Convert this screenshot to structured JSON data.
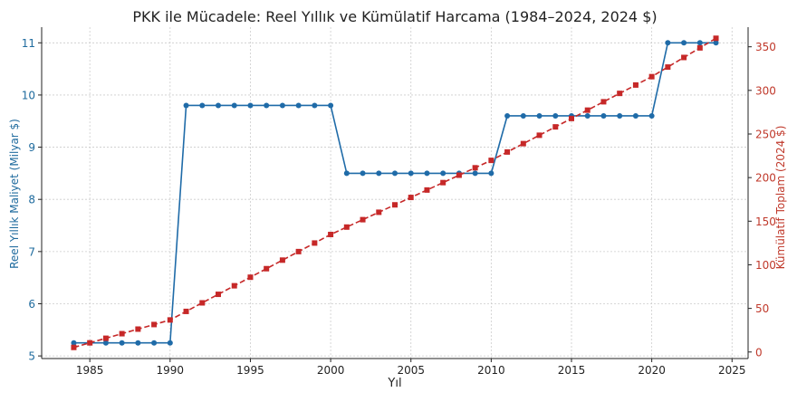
{
  "chart_data": {
    "type": "line",
    "title": "PKK ile Mücadele: Reel Yıllık ve Kümülatif Harcama (1984–2024, 2024 $)",
    "xlabel": "Yıl",
    "ylabel_left": "Reel Yıllık Maliyet (Milyar $)",
    "ylabel_right": "Kümülatif Toplam (2024 $)",
    "x_ticks": [
      1985,
      1990,
      1995,
      2000,
      2005,
      2010,
      2015,
      2020,
      2025
    ],
    "y_left_ticks": [
      5,
      6,
      7,
      8,
      9,
      10,
      11
    ],
    "y_right_ticks": [
      0,
      50,
      100,
      150,
      200,
      250,
      300,
      350
    ],
    "xlim": [
      1982.0,
      2026.0
    ],
    "ylim_left": [
      4.95,
      11.3
    ],
    "ylim_right": [
      -7.5,
      372.5
    ],
    "grid": true,
    "colors": {
      "left_axis": "#1f6b9e",
      "right_axis": "#c0392b",
      "series_annual": "#1f6ba8",
      "series_cumulative": "#c62828",
      "grid": "#cccccc"
    },
    "x": [
      1984,
      1985,
      1986,
      1987,
      1988,
      1989,
      1990,
      1991,
      1992,
      1993,
      1994,
      1995,
      1996,
      1997,
      1998,
      1999,
      2000,
      2001,
      2002,
      2003,
      2004,
      2005,
      2006,
      2007,
      2008,
      2009,
      2010,
      2011,
      2012,
      2013,
      2014,
      2015,
      2016,
      2017,
      2018,
      2019,
      2020,
      2021,
      2022,
      2023,
      2024
    ],
    "series": [
      {
        "axis": "left",
        "style": "solid-circle",
        "values": [
          5.25,
          5.25,
          5.25,
          5.25,
          5.25,
          5.25,
          5.25,
          9.8,
          9.8,
          9.8,
          9.8,
          9.8,
          9.8,
          9.8,
          9.8,
          9.8,
          9.8,
          8.5,
          8.5,
          8.5,
          8.5,
          8.5,
          8.5,
          8.5,
          8.5,
          8.5,
          8.5,
          9.6,
          9.6,
          9.6,
          9.6,
          9.6,
          9.6,
          9.6,
          9.6,
          9.6,
          9.6,
          11.0,
          11.0,
          11.0,
          11.0
        ]
      },
      {
        "axis": "right",
        "style": "dashed-square",
        "values": [
          5.25,
          10.5,
          15.75,
          21.0,
          26.25,
          31.5,
          36.75,
          46.55,
          56.35,
          66.15,
          75.95,
          85.75,
          95.55,
          105.35,
          115.15,
          124.95,
          134.75,
          143.25,
          151.75,
          160.25,
          168.75,
          177.25,
          185.75,
          194.25,
          202.75,
          211.25,
          219.75,
          229.35,
          238.95,
          248.55,
          258.15,
          267.75,
          277.35,
          286.95,
          296.55,
          306.15,
          315.75,
          326.75,
          337.75,
          348.75,
          359.75
        ]
      }
    ]
  }
}
